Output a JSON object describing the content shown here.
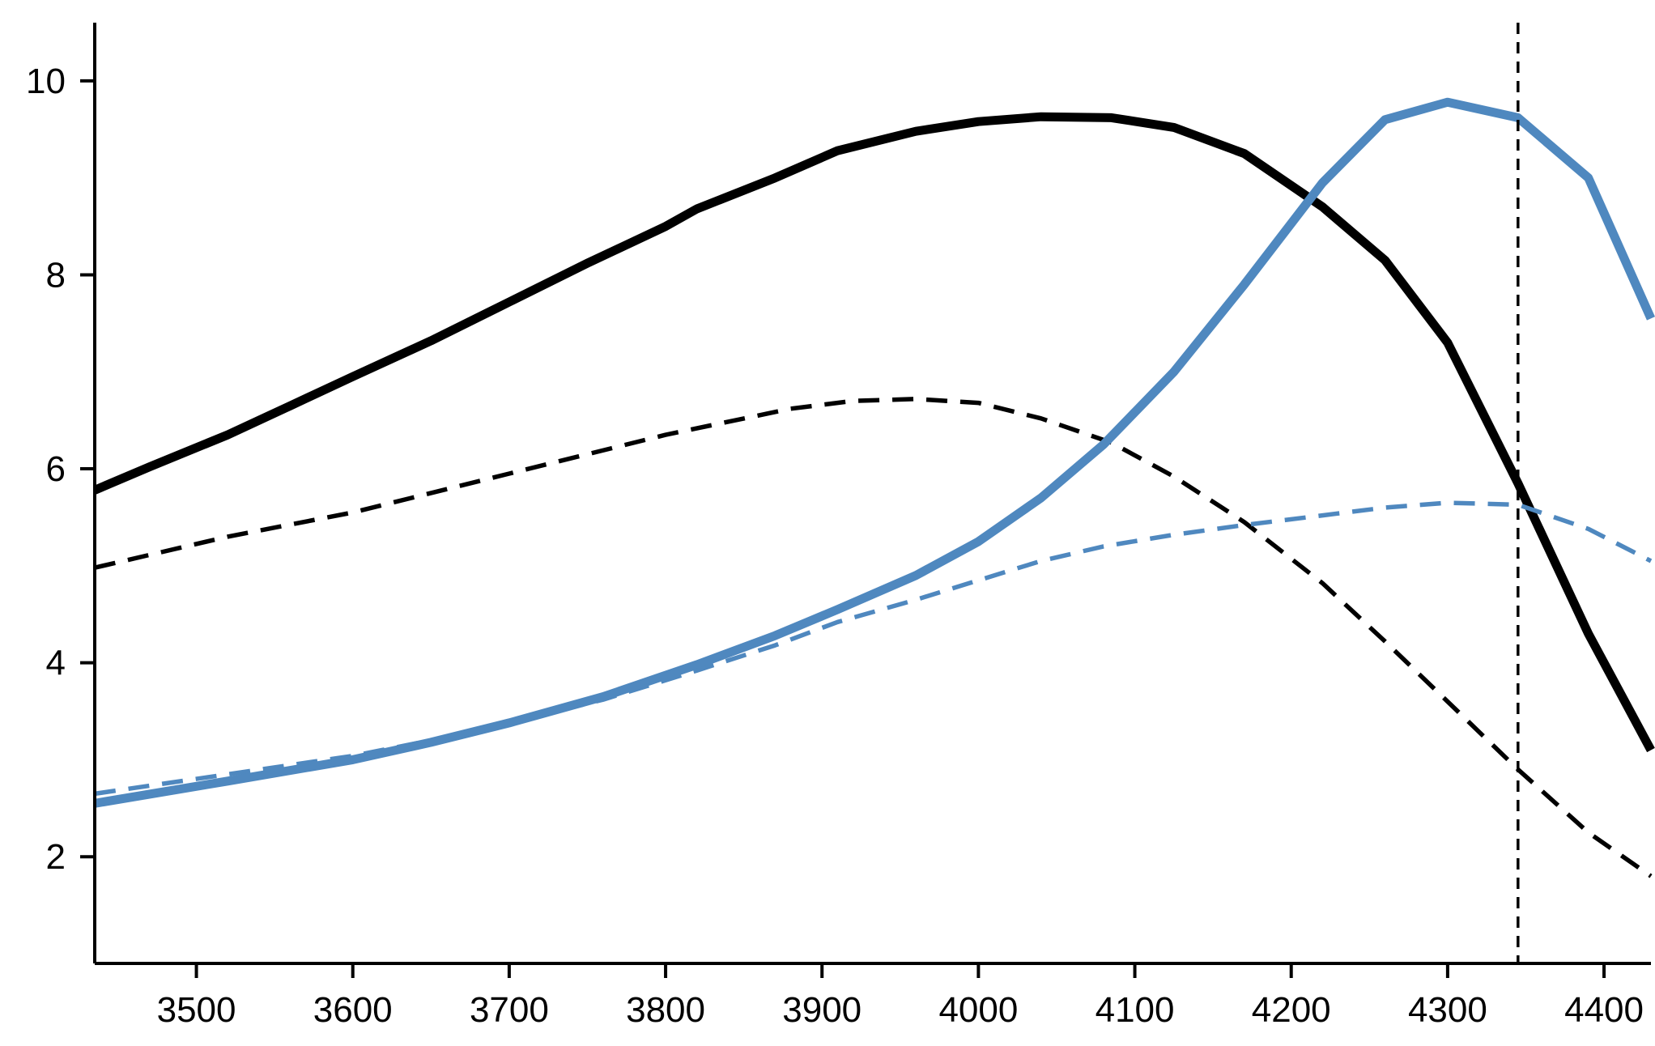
{
  "chart_data": {
    "type": "line",
    "title": "",
    "xlabel": "",
    "ylabel": "",
    "xlim": [
      3435,
      4430
    ],
    "ylim": [
      0.9,
      10.6
    ],
    "xticks": [
      3500,
      3600,
      3700,
      3800,
      3900,
      4000,
      4100,
      4200,
      4300,
      4400
    ],
    "yticks": [
      2,
      4,
      6,
      8,
      10
    ],
    "grid": false,
    "legend": "none",
    "vline": {
      "x": 4345,
      "style": "dashed",
      "color": "#000000"
    },
    "series": [
      {
        "color": "#000000",
        "style": "solid",
        "x": [
          3435,
          3470,
          3520,
          3560,
          3600,
          3650,
          3700,
          3750,
          3800,
          3820,
          3870,
          3910,
          3960,
          4000,
          4040,
          4085,
          4125,
          4170,
          4220,
          4260,
          4300,
          4345,
          4390,
          4430
        ],
        "y": [
          5.78,
          6.02,
          6.35,
          6.65,
          6.95,
          7.32,
          7.72,
          8.12,
          8.5,
          8.68,
          9.0,
          9.28,
          9.48,
          9.58,
          9.63,
          9.62,
          9.52,
          9.25,
          8.7,
          8.15,
          7.3,
          5.85,
          4.3,
          3.1
        ]
      },
      {
        "color": "#000000",
        "style": "dashed",
        "x": [
          3435,
          3520,
          3600,
          3700,
          3800,
          3880,
          3920,
          3960,
          4000,
          4040,
          4085,
          4125,
          4170,
          4220,
          4260,
          4300,
          4345,
          4390,
          4430
        ],
        "y": [
          4.98,
          5.3,
          5.55,
          5.95,
          6.35,
          6.62,
          6.7,
          6.72,
          6.68,
          6.52,
          6.27,
          5.92,
          5.45,
          4.82,
          4.22,
          3.6,
          2.9,
          2.25,
          1.8
        ]
      },
      {
        "color": "#4f88bf",
        "style": "solid",
        "x": [
          3435,
          3520,
          3600,
          3650,
          3700,
          3760,
          3820,
          3870,
          3910,
          3960,
          4000,
          4040,
          4080,
          4125,
          4170,
          4220,
          4260,
          4300,
          4345,
          4390,
          4430
        ],
        "y": [
          2.55,
          2.78,
          3.0,
          3.18,
          3.38,
          3.65,
          3.98,
          4.28,
          4.55,
          4.9,
          5.25,
          5.7,
          6.25,
          7.0,
          7.9,
          8.95,
          9.6,
          9.78,
          9.62,
          9.0,
          7.55
        ]
      },
      {
        "color": "#4f88bf",
        "style": "dashed",
        "x": [
          3435,
          3520,
          3600,
          3650,
          3700,
          3760,
          3820,
          3870,
          3910,
          3960,
          4000,
          4040,
          4080,
          4125,
          4170,
          4220,
          4260,
          4300,
          4345,
          4390,
          4430
        ],
        "y": [
          2.65,
          2.85,
          3.04,
          3.2,
          3.38,
          3.62,
          3.92,
          4.18,
          4.42,
          4.65,
          4.85,
          5.05,
          5.2,
          5.32,
          5.42,
          5.52,
          5.6,
          5.65,
          5.63,
          5.38,
          5.05
        ]
      }
    ]
  }
}
